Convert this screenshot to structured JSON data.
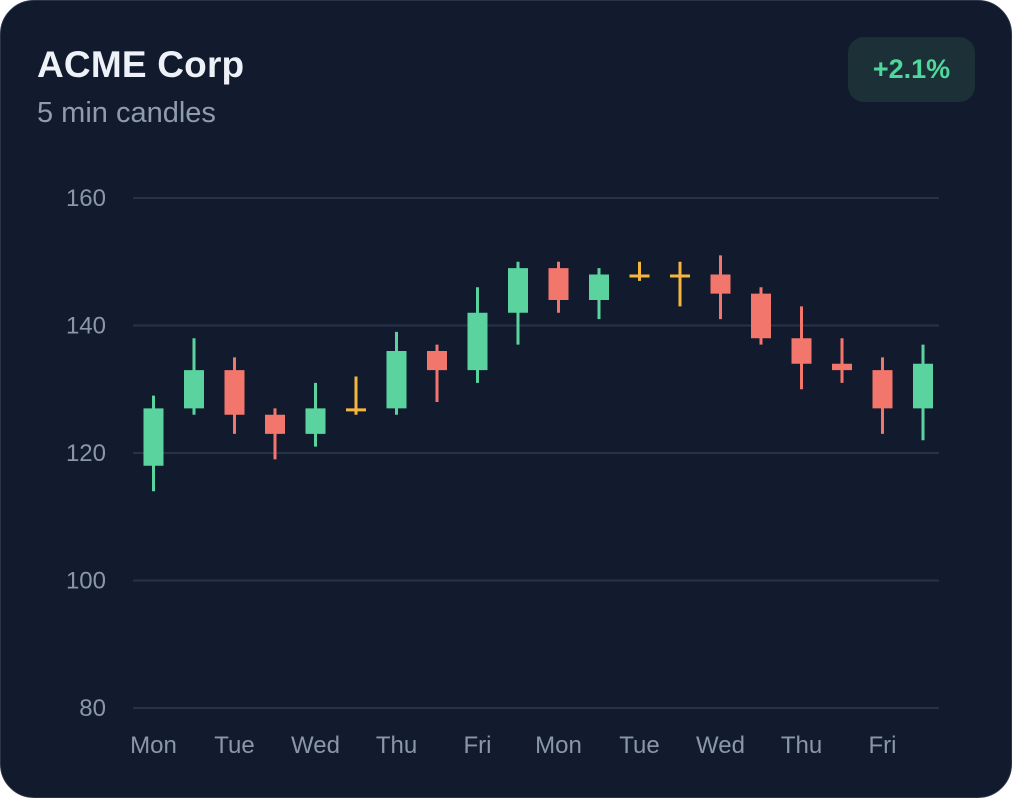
{
  "header": {
    "title": "ACME Corp",
    "subtitle": "5 min candles",
    "change_badge": "+2.1%"
  },
  "colors": {
    "background": "#121b2e",
    "up": "#5ad39e",
    "down": "#f2766b",
    "neutral": "#f5b53f",
    "grid": "#273249",
    "badge_text": "#4ed89b"
  },
  "chart_data": {
    "type": "candlestick",
    "title": "ACME Corp",
    "subtitle": "5 min candles",
    "xlabel": "",
    "ylabel": "",
    "ylim": [
      80,
      160
    ],
    "yticks": [
      160,
      140,
      120,
      100,
      80
    ],
    "grid": true,
    "x_tick_labels": [
      "Mon",
      "Tue",
      "Wed",
      "Thu",
      "Fri",
      "Mon",
      "Tue",
      "Wed",
      "Thu",
      "Fri"
    ],
    "candles": [
      {
        "open": 118,
        "high": 129,
        "low": 114,
        "close": 127
      },
      {
        "open": 127,
        "high": 138,
        "low": 126,
        "close": 133
      },
      {
        "open": 133,
        "high": 135,
        "low": 123,
        "close": 126
      },
      {
        "open": 126,
        "high": 127,
        "low": 119,
        "close": 123
      },
      {
        "open": 123,
        "high": 131,
        "low": 121,
        "close": 127
      },
      {
        "open": 127,
        "high": 132,
        "low": 126,
        "close": 127
      },
      {
        "open": 127,
        "high": 139,
        "low": 126,
        "close": 136
      },
      {
        "open": 136,
        "high": 137,
        "low": 128,
        "close": 133
      },
      {
        "open": 133,
        "high": 146,
        "low": 131,
        "close": 142
      },
      {
        "open": 142,
        "high": 150,
        "low": 137,
        "close": 149
      },
      {
        "open": 149,
        "high": 150,
        "low": 142,
        "close": 144
      },
      {
        "open": 144,
        "high": 149,
        "low": 141,
        "close": 148
      },
      {
        "open": 148,
        "high": 150,
        "low": 147,
        "close": 148
      },
      {
        "open": 148,
        "high": 150,
        "low": 143,
        "close": 148
      },
      {
        "open": 148,
        "high": 151,
        "low": 141,
        "close": 145
      },
      {
        "open": 145,
        "high": 146,
        "low": 137,
        "close": 138
      },
      {
        "open": 138,
        "high": 143,
        "low": 130,
        "close": 134
      },
      {
        "open": 134,
        "high": 138,
        "low": 131,
        "close": 133
      },
      {
        "open": 133,
        "high": 135,
        "low": 123,
        "close": 127
      },
      {
        "open": 127,
        "high": 137,
        "low": 122,
        "close": 134
      }
    ]
  }
}
